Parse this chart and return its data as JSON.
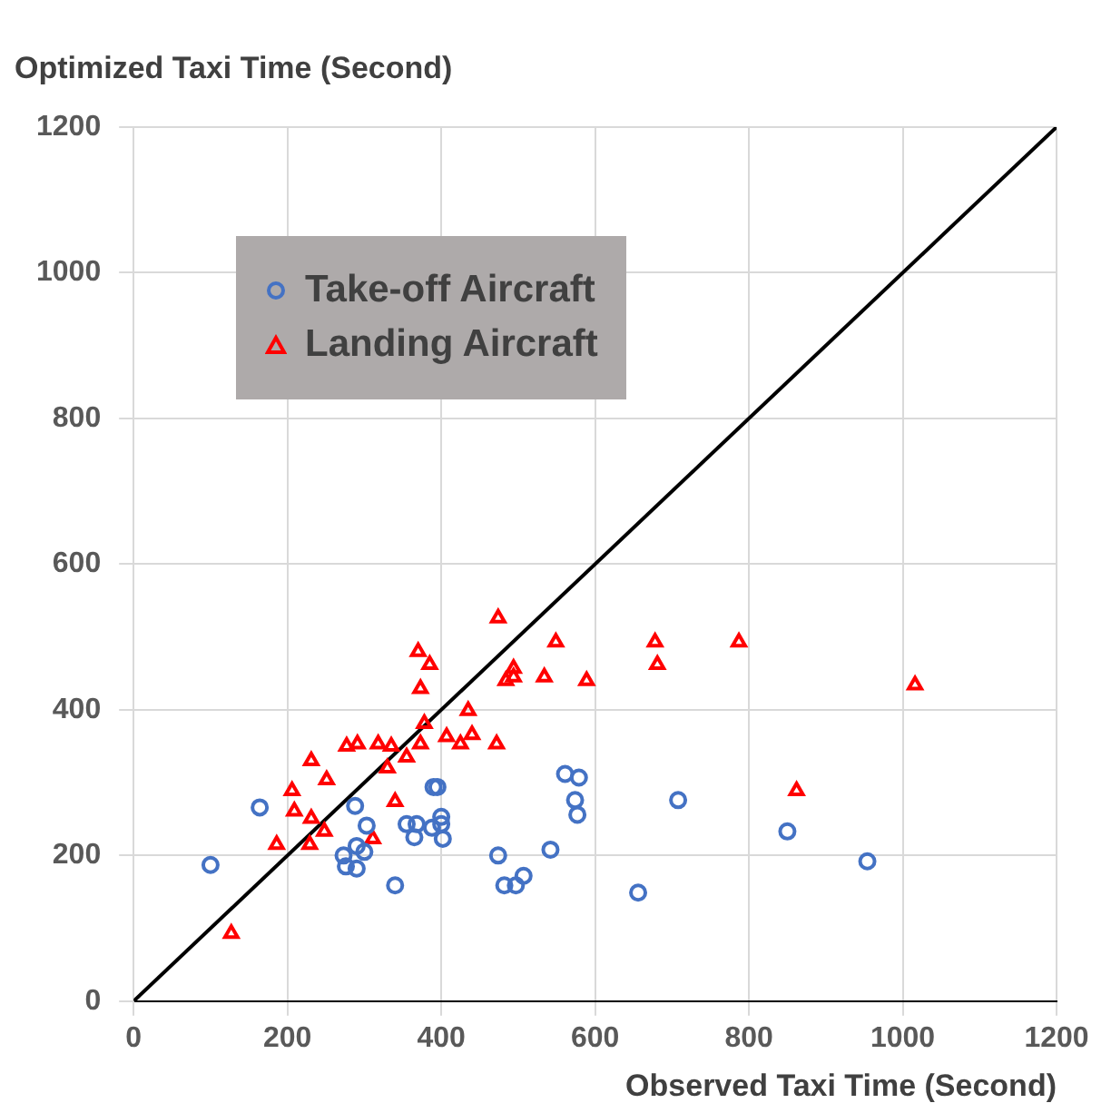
{
  "chart_data": {
    "type": "scatter",
    "xlabel": "Observed Taxi Time (Second)",
    "ylabel": "Optimized Taxi Time (Second)",
    "xlim": [
      0,
      1200
    ],
    "ylim": [
      0,
      1200
    ],
    "xticks": [
      0,
      200,
      400,
      600,
      800,
      1000,
      1200
    ],
    "yticks": [
      0,
      200,
      400,
      600,
      800,
      1000,
      1200
    ],
    "grid": true,
    "legend": "top left",
    "series": [
      {
        "name": "Take-off Aircraft",
        "color": "#4472c4",
        "marker": "circle",
        "x": [
          100,
          164,
          288,
          303,
          273,
          290,
          300,
          276,
          290,
          340,
          355,
          368,
          388,
          400,
          400,
          365,
          402,
          390,
          395,
          561,
          579,
          574,
          577,
          708,
          850,
          542,
          474,
          482,
          497,
          507,
          656,
          954
        ],
        "values": [
          187,
          266,
          268,
          241,
          200,
          213,
          205,
          185,
          182,
          159,
          243,
          243,
          238,
          253,
          243,
          225,
          223,
          294,
          294,
          312,
          307,
          276,
          256,
          276,
          233,
          208,
          200,
          159,
          159,
          172,
          149,
          192
        ]
      },
      {
        "name": "Landing Aircraft",
        "color": "#ff0000",
        "marker": "triangle",
        "x": [
          127,
          186,
          229,
          248,
          231,
          209,
          206,
          251,
          231,
          277,
          291,
          318,
          335,
          330,
          340,
          311,
          355,
          373,
          378,
          373,
          385,
          370,
          407,
          425,
          435,
          440,
          474,
          549,
          678,
          787,
          681,
          494,
          494,
          484,
          534,
          589,
          472,
          862,
          1016
        ],
        "values": [
          93,
          215,
          215,
          233,
          251,
          261,
          289,
          304,
          330,
          350,
          353,
          353,
          350,
          320,
          274,
          223,
          335,
          353,
          381,
          429,
          462,
          480,
          363,
          353,
          399,
          366,
          526,
          493,
          493,
          493,
          462,
          457,
          445,
          440,
          445,
          440,
          353,
          289,
          434
        ]
      },
      {
        "type": "line",
        "color": "#000000",
        "marker": "none",
        "line_style": "solid",
        "x": [
          0,
          1200
        ],
        "values": [
          0,
          1200
        ]
      }
    ]
  }
}
